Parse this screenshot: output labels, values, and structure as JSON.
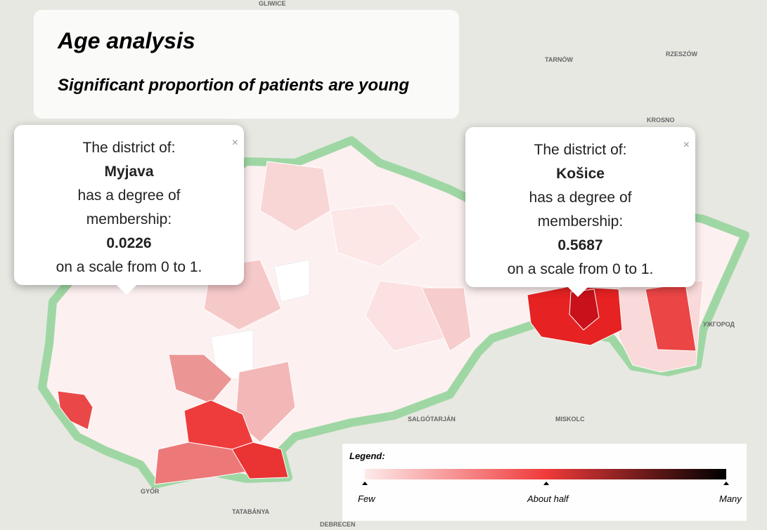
{
  "header": {
    "title": "Age analysis",
    "subtitle": "Significant proportion of patients are young"
  },
  "popups": [
    {
      "close": "×",
      "line1": "The district of:",
      "district": "Myjava",
      "line2": "has a degree of",
      "line3": "membership:",
      "value": "0.0226",
      "line4": "on a scale from 0 to 1."
    },
    {
      "close": "×",
      "line1": "The district of:",
      "district": "Košice",
      "line2": "has a degree of",
      "line3": "membership:",
      "value": "0.5687",
      "line4": "on a scale from 0 to 1."
    }
  ],
  "legend": {
    "title": "Legend:",
    "labels": [
      "Few",
      "About half",
      "Many"
    ]
  },
  "map_labels": [
    "GLIWICE",
    "TARNÓW",
    "RZESZÓW",
    "KROSNO",
    "MISKOLC",
    "SALGÓTARJÁN",
    "GYŐR",
    "TATABÁNYA",
    "DEBRECEN",
    "УЖГОРОД"
  ]
}
